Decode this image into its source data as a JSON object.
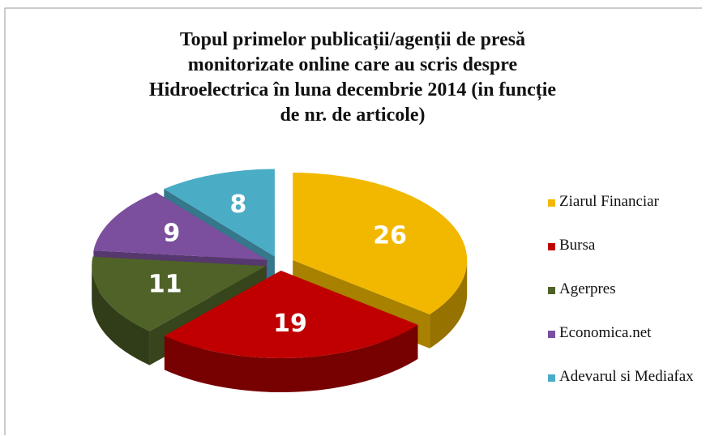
{
  "chart_data": {
    "type": "pie",
    "title": "Topul primelor publicații/agenții de presă monitorizate online care au scris despre Hidroelectrica în luna decembrie 2014 (in funcție de nr. de articole)",
    "categories": [
      "Ziarul Financiar",
      "Bursa",
      "Agerpres",
      "Economica.net",
      "Adevarul si Mediafax"
    ],
    "values": [
      26,
      19,
      11,
      9,
      8
    ],
    "colors": [
      "#f2b800",
      "#c00000",
      "#4f6228",
      "#7b4f9d",
      "#4bacc6"
    ],
    "legend": "right"
  }
}
